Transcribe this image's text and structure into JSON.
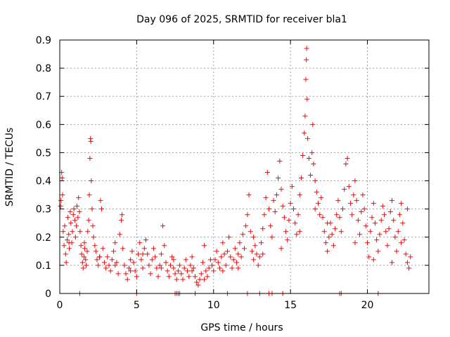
{
  "chart_data": {
    "type": "scatter",
    "title": "Day 096 of 2025, SRMTID for receiver bla1",
    "xlabel": "GPS time / hours",
    "ylabel": "SRMTID / TECUs",
    "xlim": [
      0,
      24
    ],
    "ylim": [
      0,
      0.9
    ],
    "xticks": [
      0,
      5,
      10,
      15,
      20
    ],
    "yticks": [
      0,
      0.1,
      0.2,
      0.3,
      0.4,
      0.5,
      0.6,
      0.7,
      0.8,
      0.9
    ],
    "grid": true,
    "marker": "+",
    "color": "#ff0000",
    "series": [
      {
        "name": "SRMTID",
        "points": [
          [
            0.05,
            0.31
          ],
          [
            0.08,
            0.33
          ],
          [
            0.12,
            0.43
          ],
          [
            0.15,
            0.41
          ],
          [
            0.18,
            0.35
          ],
          [
            0.22,
            0.22
          ],
          [
            0.28,
            0.17
          ],
          [
            0.32,
            0.24
          ],
          [
            0.38,
            0.14
          ],
          [
            0.42,
            0.11
          ],
          [
            0.48,
            0.19
          ],
          [
            0.52,
            0.27
          ],
          [
            0.58,
            0.21
          ],
          [
            0.62,
            0.16
          ],
          [
            0.68,
            0.29
          ],
          [
            0.72,
            0.25
          ],
          [
            0.78,
            0.18
          ],
          [
            0.82,
            0.22
          ],
          [
            0.88,
            0.28
          ],
          [
            0.92,
            0.3
          ],
          [
            0.98,
            0.26
          ],
          [
            1.02,
            0.2
          ],
          [
            1.08,
            0.24
          ],
          [
            1.12,
            0.31
          ],
          [
            1.18,
            0.27
          ],
          [
            1.22,
            0.34
          ],
          [
            1.28,
            0.29
          ],
          [
            1.32,
            0.22
          ],
          [
            1.38,
            0.17
          ],
          [
            1.42,
            0.14
          ],
          [
            1.48,
            0.11
          ],
          [
            1.52,
            0.09
          ],
          [
            1.58,
            0.13
          ],
          [
            1.62,
            0.16
          ],
          [
            1.68,
            0.12
          ],
          [
            1.72,
            0.1
          ],
          [
            1.78,
            0.15
          ],
          [
            1.82,
            0.22
          ],
          [
            1.88,
            0.26
          ],
          [
            1.92,
            0.35
          ],
          [
            1.96,
            0.48
          ],
          [
            2.0,
            0.55
          ],
          [
            2.02,
            0.54
          ],
          [
            2.05,
            0.4
          ],
          [
            2.1,
            0.3
          ],
          [
            2.15,
            0.24
          ],
          [
            2.2,
            0.2
          ],
          [
            2.28,
            0.17
          ],
          [
            2.35,
            0.15
          ],
          [
            2.42,
            0.12
          ],
          [
            2.5,
            0.1
          ],
          [
            2.58,
            0.13
          ],
          [
            2.65,
            0.33
          ],
          [
            2.72,
            0.3
          ],
          [
            2.8,
            0.16
          ],
          [
            2.9,
            0.11
          ],
          [
            3.0,
            0.09
          ],
          [
            3.1,
            0.13
          ],
          [
            3.2,
            0.1
          ],
          [
            3.3,
            0.08
          ],
          [
            3.4,
            0.12
          ],
          [
            3.5,
            0.15
          ],
          [
            3.6,
            0.18
          ],
          [
            3.7,
            0.11
          ],
          [
            3.8,
            0.07
          ],
          [
            3.9,
            0.21
          ],
          [
            4.0,
            0.26
          ],
          [
            4.05,
            0.28
          ],
          [
            4.1,
            0.16
          ],
          [
            4.2,
            0.1
          ],
          [
            4.3,
            0.07
          ],
          [
            4.4,
            0.05
          ],
          [
            4.5,
            0.09
          ],
          [
            4.6,
            0.12
          ],
          [
            4.7,
            0.15
          ],
          [
            4.8,
            0.11
          ],
          [
            4.9,
            0.08
          ],
          [
            5.0,
            0.06
          ],
          [
            5.1,
            0.14
          ],
          [
            5.2,
            0.18
          ],
          [
            5.3,
            0.12
          ],
          [
            5.4,
            0.09
          ],
          [
            5.5,
            0.16
          ],
          [
            5.6,
            0.19
          ],
          [
            5.7,
            0.14
          ],
          [
            5.8,
            0.1
          ],
          [
            5.9,
            0.07
          ],
          [
            6.0,
            0.12
          ],
          [
            6.1,
            0.16
          ],
          [
            6.2,
            0.13
          ],
          [
            6.3,
            0.09
          ],
          [
            6.4,
            0.06
          ],
          [
            6.5,
            0.1
          ],
          [
            6.6,
            0.14
          ],
          [
            6.7,
            0.24
          ],
          [
            6.8,
            0.17
          ],
          [
            6.9,
            0.11
          ],
          [
            7.0,
            0.08
          ],
          [
            7.1,
            0.06
          ],
          [
            7.2,
            0.1
          ],
          [
            7.3,
            0.13
          ],
          [
            7.4,
            0.09
          ],
          [
            7.5,
            0.07
          ],
          [
            7.6,
            0.05
          ],
          [
            7.7,
            0.08
          ],
          [
            7.8,
            0.1
          ],
          [
            7.9,
            0.07
          ],
          [
            8.0,
            0.05
          ],
          [
            8.1,
            0.09
          ],
          [
            8.2,
            0.12
          ],
          [
            8.3,
            0.08
          ],
          [
            8.4,
            0.06
          ],
          [
            8.5,
            0.1
          ],
          [
            8.6,
            0.13
          ],
          [
            8.7,
            0.09
          ],
          [
            8.8,
            0.06
          ],
          [
            8.9,
            0.04
          ],
          [
            9.0,
            0.03
          ],
          [
            9.1,
            0.05
          ],
          [
            9.2,
            0.07
          ],
          [
            9.3,
            0.11
          ],
          [
            9.4,
            0.17
          ],
          [
            9.5,
            0.08
          ],
          [
            9.6,
            0.06
          ],
          [
            9.7,
            0.09
          ],
          [
            9.8,
            0.12
          ],
          [
            9.9,
            0.1
          ],
          [
            10.0,
            0.08
          ],
          [
            10.1,
            0.12
          ],
          [
            10.2,
            0.15
          ],
          [
            10.3,
            0.11
          ],
          [
            10.4,
            0.09
          ],
          [
            10.5,
            0.13
          ],
          [
            10.6,
            0.18
          ],
          [
            10.7,
            0.14
          ],
          [
            10.8,
            0.1
          ],
          [
            10.9,
            0.15
          ],
          [
            11.0,
            0.2
          ],
          [
            11.1,
            0.13
          ],
          [
            11.2,
            0.09
          ],
          [
            11.3,
            0.12
          ],
          [
            11.4,
            0.16
          ],
          [
            11.5,
            0.11
          ],
          [
            11.6,
            0.14
          ],
          [
            11.7,
            0.18
          ],
          [
            11.8,
            0.13
          ],
          [
            11.9,
            0.21
          ],
          [
            12.0,
            0.16
          ],
          [
            12.1,
            0.24
          ],
          [
            12.2,
            0.28
          ],
          [
            12.3,
            0.35
          ],
          [
            12.4,
            0.22
          ],
          [
            12.5,
            0.15
          ],
          [
            12.6,
            0.12
          ],
          [
            12.7,
            0.17
          ],
          [
            12.8,
            0.14
          ],
          [
            12.9,
            0.1
          ],
          [
            13.0,
            0.13
          ],
          [
            13.1,
            0.18
          ],
          [
            13.2,
            0.23
          ],
          [
            13.3,
            0.28
          ],
          [
            13.4,
            0.34
          ],
          [
            13.5,
            0.43
          ],
          [
            13.6,
            0.3
          ],
          [
            13.7,
            0.24
          ],
          [
            13.8,
            0.2
          ],
          [
            13.9,
            0.33
          ],
          [
            14.0,
            0.29
          ],
          [
            14.1,
            0.35
          ],
          [
            14.2,
            0.41
          ],
          [
            14.3,
            0.47
          ],
          [
            14.4,
            0.37
          ],
          [
            14.5,
            0.31
          ],
          [
            14.6,
            0.27
          ],
          [
            14.7,
            0.22
          ],
          [
            14.8,
            0.19
          ],
          [
            14.9,
            0.26
          ],
          [
            15.0,
            0.32
          ],
          [
            15.1,
            0.38
          ],
          [
            15.2,
            0.3
          ],
          [
            15.3,
            0.25
          ],
          [
            15.4,
            0.21
          ],
          [
            15.5,
            0.28
          ],
          [
            15.6,
            0.35
          ],
          [
            15.7,
            0.41
          ],
          [
            15.8,
            0.49
          ],
          [
            15.9,
            0.57
          ],
          [
            15.95,
            0.63
          ],
          [
            16.0,
            0.76
          ],
          [
            16.03,
            0.83
          ],
          [
            16.05,
            0.87
          ],
          [
            16.08,
            0.69
          ],
          [
            16.12,
            0.55
          ],
          [
            16.2,
            0.48
          ],
          [
            16.3,
            0.42
          ],
          [
            16.4,
            0.5
          ],
          [
            16.45,
            0.6
          ],
          [
            16.5,
            0.46
          ],
          [
            16.6,
            0.4
          ],
          [
            16.7,
            0.36
          ],
          [
            16.8,
            0.32
          ],
          [
            16.9,
            0.28
          ],
          [
            17.0,
            0.34
          ],
          [
            17.1,
            0.27
          ],
          [
            17.2,
            0.22
          ],
          [
            17.3,
            0.18
          ],
          [
            17.4,
            0.15
          ],
          [
            17.5,
            0.2
          ],
          [
            17.6,
            0.25
          ],
          [
            17.7,
            0.21
          ],
          [
            17.8,
            0.17
          ],
          [
            17.9,
            0.23
          ],
          [
            18.0,
            0.28
          ],
          [
            18.1,
            0.33
          ],
          [
            18.2,
            0.27
          ],
          [
            18.3,
            0.22
          ],
          [
            18.4,
            0.3
          ],
          [
            18.5,
            0.37
          ],
          [
            18.6,
            0.46
          ],
          [
            18.7,
            0.48
          ],
          [
            18.8,
            0.38
          ],
          [
            18.9,
            0.32
          ],
          [
            19.0,
            0.28
          ],
          [
            19.1,
            0.35
          ],
          [
            19.2,
            0.4
          ],
          [
            19.3,
            0.33
          ],
          [
            19.4,
            0.26
          ],
          [
            19.5,
            0.21
          ],
          [
            19.6,
            0.29
          ],
          [
            19.7,
            0.35
          ],
          [
            19.8,
            0.3
          ],
          [
            19.9,
            0.24
          ],
          [
            20.0,
            0.18
          ],
          [
            20.1,
            0.13
          ],
          [
            20.2,
            0.22
          ],
          [
            20.3,
            0.27
          ],
          [
            20.4,
            0.32
          ],
          [
            20.5,
            0.25
          ],
          [
            20.6,
            0.19
          ],
          [
            20.7,
            0.15
          ],
          [
            20.8,
            0.21
          ],
          [
            20.9,
            0.26
          ],
          [
            21.0,
            0.31
          ],
          [
            21.1,
            0.28
          ],
          [
            21.2,
            0.22
          ],
          [
            21.3,
            0.17
          ],
          [
            21.4,
            0.23
          ],
          [
            21.5,
            0.29
          ],
          [
            21.6,
            0.33
          ],
          [
            21.7,
            0.26
          ],
          [
            21.8,
            0.2
          ],
          [
            21.9,
            0.15
          ],
          [
            22.0,
            0.22
          ],
          [
            22.1,
            0.28
          ],
          [
            22.2,
            0.32
          ],
          [
            22.3,
            0.25
          ],
          [
            22.4,
            0.19
          ],
          [
            22.5,
            0.14
          ],
          [
            22.6,
            0.11
          ],
          [
            22.7,
            0.09
          ],
          [
            22.8,
            0.13
          ],
          [
            22.6,
            0.3
          ],
          [
            22.2,
            0.18
          ],
          [
            21.6,
            0.11
          ],
          [
            20.4,
            0.12
          ],
          [
            19.2,
            0.18
          ],
          [
            17.4,
            0.25
          ],
          [
            16.6,
            0.3
          ],
          [
            15.6,
            0.22
          ],
          [
            14.4,
            0.16
          ],
          [
            13.2,
            0.14
          ],
          [
            12.6,
            0.2
          ],
          [
            11.6,
            0.09
          ],
          [
            10.6,
            0.08
          ],
          [
            9.4,
            0.05
          ],
          [
            8.6,
            0.08
          ],
          [
            7.4,
            0.12
          ],
          [
            6.6,
            0.09
          ],
          [
            5.4,
            0.14
          ],
          [
            4.6,
            0.08
          ],
          [
            3.6,
            0.1
          ],
          [
            2.6,
            0.13
          ],
          [
            1.6,
            0.18
          ],
          [
            0.6,
            0.18
          ],
          [
            1.3,
            0.0
          ],
          [
            5.0,
            0.0
          ],
          [
            7.5,
            0.0
          ],
          [
            7.6,
            0.0
          ],
          [
            7.7,
            0.0
          ],
          [
            7.8,
            0.0
          ],
          [
            8.8,
            0.0
          ],
          [
            10.9,
            0.0
          ],
          [
            12.2,
            0.0
          ],
          [
            13.0,
            0.0
          ],
          [
            13.6,
            0.0
          ],
          [
            13.8,
            0.0
          ],
          [
            14.5,
            0.0
          ],
          [
            18.2,
            0.0
          ],
          [
            18.3,
            0.0
          ],
          [
            20.7,
            0.0
          ]
        ]
      }
    ]
  }
}
